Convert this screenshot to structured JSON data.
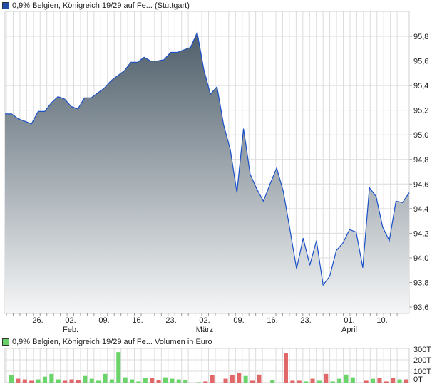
{
  "price_legend": {
    "label": "0,9% Belgien, Königreich 19/29 auf Fe... (Stuttgart)",
    "color": "#1d4fa8"
  },
  "volume_legend": {
    "label": "0,9% Belgien, Königreich 19/29 auf Fe... Volumen in Euro",
    "color": "#66d066"
  },
  "chart_data": [
    {
      "type": "area",
      "title": "0,9% Belgien, Königreich 19/29 auf Fe... (Stuttgart)",
      "ylim": [
        93.55,
        95.95
      ],
      "yticks": [
        "95,8",
        "95,6",
        "95,4",
        "95,2",
        "95,0",
        "94,8",
        "94,6",
        "94,4",
        "94,2",
        "94,0",
        "93,8",
        "93,6"
      ],
      "ytick_values": [
        95.8,
        95.6,
        95.4,
        95.2,
        95.0,
        94.8,
        94.6,
        94.4,
        94.2,
        94.0,
        93.8,
        93.6
      ],
      "xticks": [
        {
          "day": "26.",
          "month": ""
        },
        {
          "day": "02.",
          "month": "Feb."
        },
        {
          "day": "09.",
          "month": ""
        },
        {
          "day": "16.",
          "month": ""
        },
        {
          "day": "23.",
          "month": ""
        },
        {
          "day": "02.",
          "month": "März"
        },
        {
          "day": "09.",
          "month": ""
        },
        {
          "day": "16.",
          "month": ""
        },
        {
          "day": "23.",
          "month": ""
        },
        {
          "day": "01.",
          "month": "April"
        },
        {
          "day": "10.",
          "month": ""
        }
      ],
      "grid": true,
      "line_color": "#1a50c8",
      "fill_top": "#4e5e6a",
      "fill_bottom": "#f5f6f7",
      "values": [
        95.17,
        95.17,
        95.13,
        95.11,
        95.09,
        95.19,
        95.19,
        95.26,
        95.31,
        95.29,
        95.23,
        95.21,
        95.3,
        95.3,
        95.34,
        95.38,
        95.44,
        95.48,
        95.52,
        95.59,
        95.59,
        95.63,
        95.6,
        95.6,
        95.61,
        95.67,
        95.67,
        95.69,
        95.71,
        95.83,
        95.53,
        95.33,
        95.39,
        95.08,
        94.88,
        94.53,
        95.05,
        94.68,
        94.56,
        94.46,
        94.6,
        94.73,
        94.54,
        94.23,
        93.91,
        94.16,
        93.94,
        94.14,
        93.78,
        93.85,
        94.06,
        94.12,
        94.23,
        94.21,
        93.92,
        94.57,
        94.5,
        94.25,
        94.14,
        94.46,
        94.45,
        94.53
      ]
    },
    {
      "type": "bar",
      "title": "0,9% Belgien, Königreich 19/29 auf Fe... Volumen in Euro",
      "ylim": [
        0,
        300
      ],
      "yticks": [
        "300T",
        "200T",
        "100T",
        "0T"
      ],
      "ytick_values": [
        300,
        200,
        100,
        0
      ],
      "up_color": "#6ad46a",
      "down_color": "#e06868",
      "values": [
        64,
        34,
        28,
        16,
        28,
        52,
        76,
        28,
        16,
        28,
        22,
        58,
        34,
        16,
        76,
        28,
        268,
        46,
        28,
        10,
        40,
        40,
        22,
        46,
        34,
        28,
        22,
        null,
        4,
        10,
        64,
        null,
        34,
        64,
        88,
        58,
        16,
        70,
        null,
        22,
        null,
        256,
        16,
        16,
        10,
        34,
        16,
        76,
        10,
        34,
        70,
        46,
        null,
        16,
        34,
        40,
        10,
        40,
        28,
        28
      ],
      "direction": [
        "u",
        "d",
        "d",
        "d",
        "u",
        "u",
        "u",
        "u",
        "d",
        "d",
        "d",
        "u",
        "u",
        "u",
        "u",
        "u",
        "u",
        "u",
        "u",
        "u",
        "u",
        "d",
        "d",
        "u",
        "u",
        "u",
        "u",
        null,
        "u",
        "d",
        "d",
        null,
        "d",
        "d",
        "d",
        "u",
        "d",
        "d",
        null,
        "u",
        null,
        "d",
        "d",
        "d",
        "u",
        "d",
        "u",
        "d",
        "u",
        "u",
        "u",
        "u",
        null,
        "d",
        "u",
        "d",
        "d",
        "d",
        "u",
        "d"
      ]
    }
  ]
}
